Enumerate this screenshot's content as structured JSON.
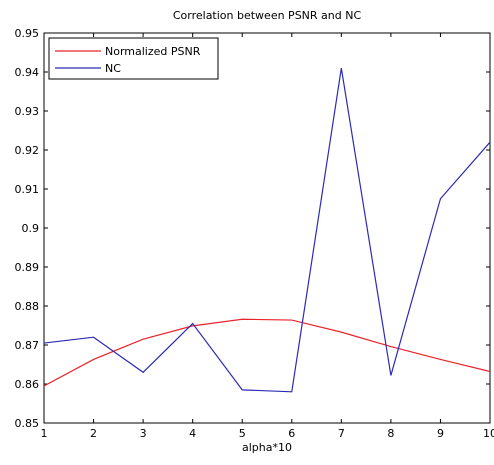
{
  "chart_data": {
    "type": "line",
    "title": "Correlation between PSNR and NC",
    "xlabel": "alpha*10",
    "ylabel": "",
    "xlim": [
      1,
      10
    ],
    "ylim": [
      0.85,
      0.95
    ],
    "xticks": [
      "1",
      "2",
      "3",
      "4",
      "5",
      "6",
      "7",
      "8",
      "9",
      "10"
    ],
    "yticks": [
      "0.85",
      "0.86",
      "0.87",
      "0.88",
      "0.89",
      "0.9",
      "0.91",
      "0.92",
      "0.93",
      "0.94",
      "0.95"
    ],
    "grid": false,
    "legend_position": "top-left",
    "x": [
      1,
      2,
      3,
      4,
      5,
      6,
      7,
      8,
      9,
      10
    ],
    "series": [
      {
        "name": "Normalized PSNR",
        "color": "#e8242c",
        "values": [
          0.8595,
          0.8663,
          0.8715,
          0.8749,
          0.8766,
          0.8764,
          0.8733,
          0.8696,
          0.8663,
          0.8632
        ]
      },
      {
        "name": "NC",
        "color": "#2b2bb5",
        "values": [
          0.8705,
          0.872,
          0.863,
          0.8755,
          0.8585,
          0.858,
          0.941,
          0.8622,
          0.9075,
          0.922
        ]
      }
    ]
  }
}
